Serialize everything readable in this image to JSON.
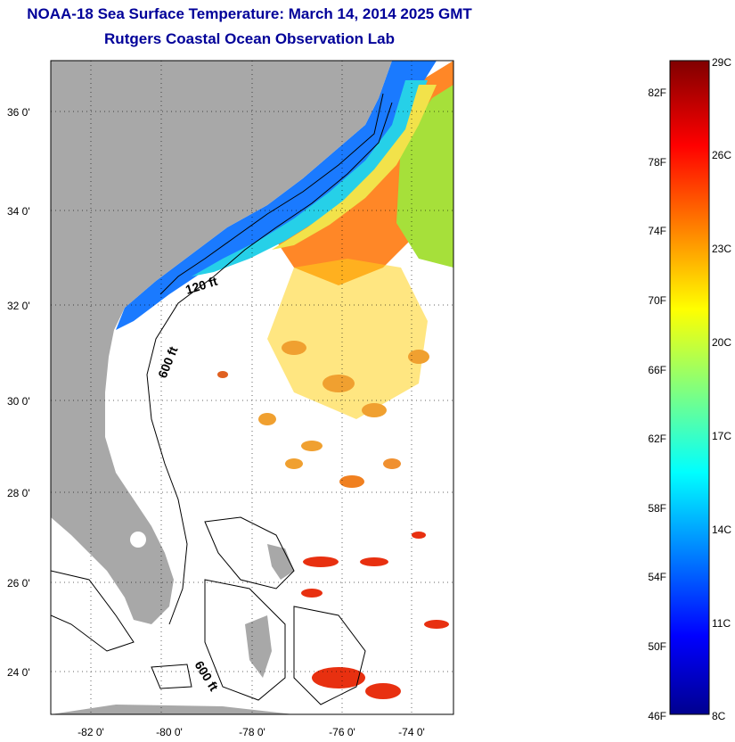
{
  "title": {
    "line1": "NOAA-18 Sea Surface Temperature:  March 14, 2014 2025 GMT",
    "line2": "Rutgers Coastal Ocean Observation Lab"
  },
  "map": {
    "lon_ticks": [
      "-82 0'",
      "-80 0'",
      "-78 0'",
      "-76 0'",
      "-74 0'"
    ],
    "lat_ticks": [
      "36 0'",
      "34 0'",
      "32 0'",
      "30 0'",
      "28 0'",
      "26 0'",
      "24 0'"
    ],
    "contour_labels": [
      "120 ft",
      "600 ft",
      "600 ft"
    ],
    "colors": {
      "land": "#a8a8a8",
      "missing": "#ffffff"
    }
  },
  "colorbar": {
    "fahrenheit_labels": [
      "82F",
      "78F",
      "74F",
      "70F",
      "66F",
      "62F",
      "58F",
      "54F",
      "50F",
      "46F"
    ],
    "celsius_labels": [
      "29C",
      "26C",
      "23C",
      "20C",
      "17C",
      "14C",
      "11C",
      "8C"
    ],
    "colormap": "jet",
    "range_f": [
      46,
      84
    ]
  }
}
